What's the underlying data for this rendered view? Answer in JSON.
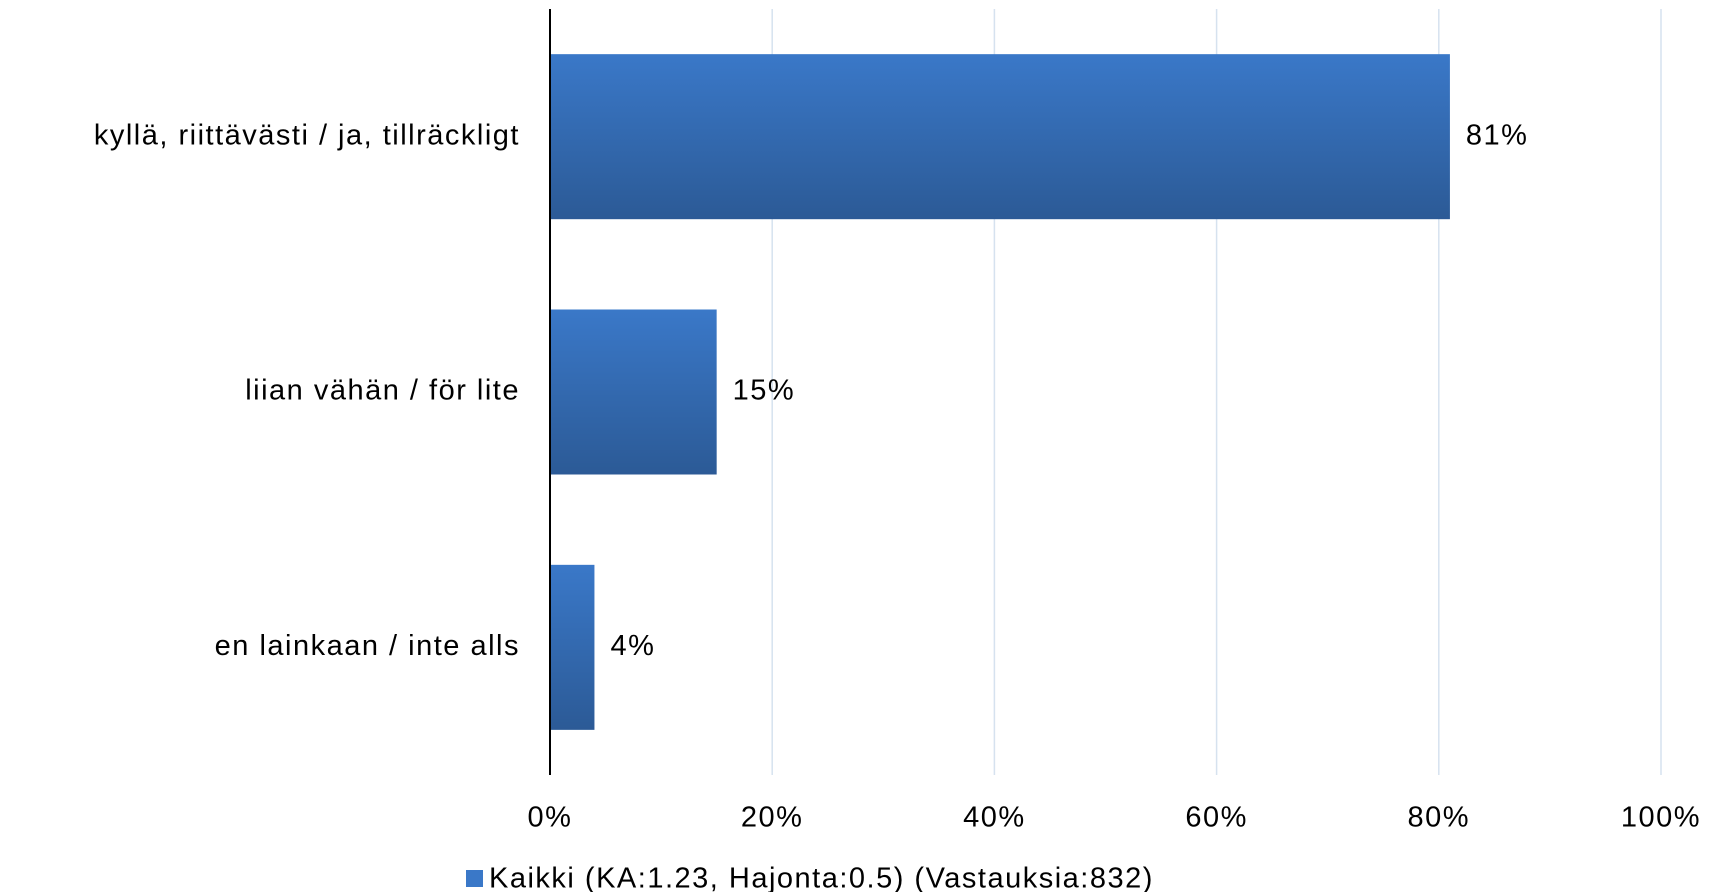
{
  "chart_data": {
    "type": "hbar",
    "categories": [
      "kyllä, riittävästi / ja, tillräckligt",
      "liian vähän / för lite",
      "en lainkaan / inte alls"
    ],
    "series": [
      {
        "name": "Kaikki (KA:1.23, Hajonta:0.5) (Vastauksia:832)",
        "color": "#3a78c8",
        "values": [
          81,
          15,
          4
        ],
        "value_labels": [
          "81%",
          "15%",
          "4%"
        ]
      }
    ],
    "xlim": [
      0,
      100
    ],
    "xticks": [
      {
        "value": 0,
        "label": "0%"
      },
      {
        "value": 20,
        "label": "20%"
      },
      {
        "value": 40,
        "label": "40%"
      },
      {
        "value": 60,
        "label": "60%"
      },
      {
        "value": 80,
        "label": "80%"
      },
      {
        "value": 100,
        "label": "100%"
      }
    ],
    "grid": true,
    "legend": "bottom"
  }
}
